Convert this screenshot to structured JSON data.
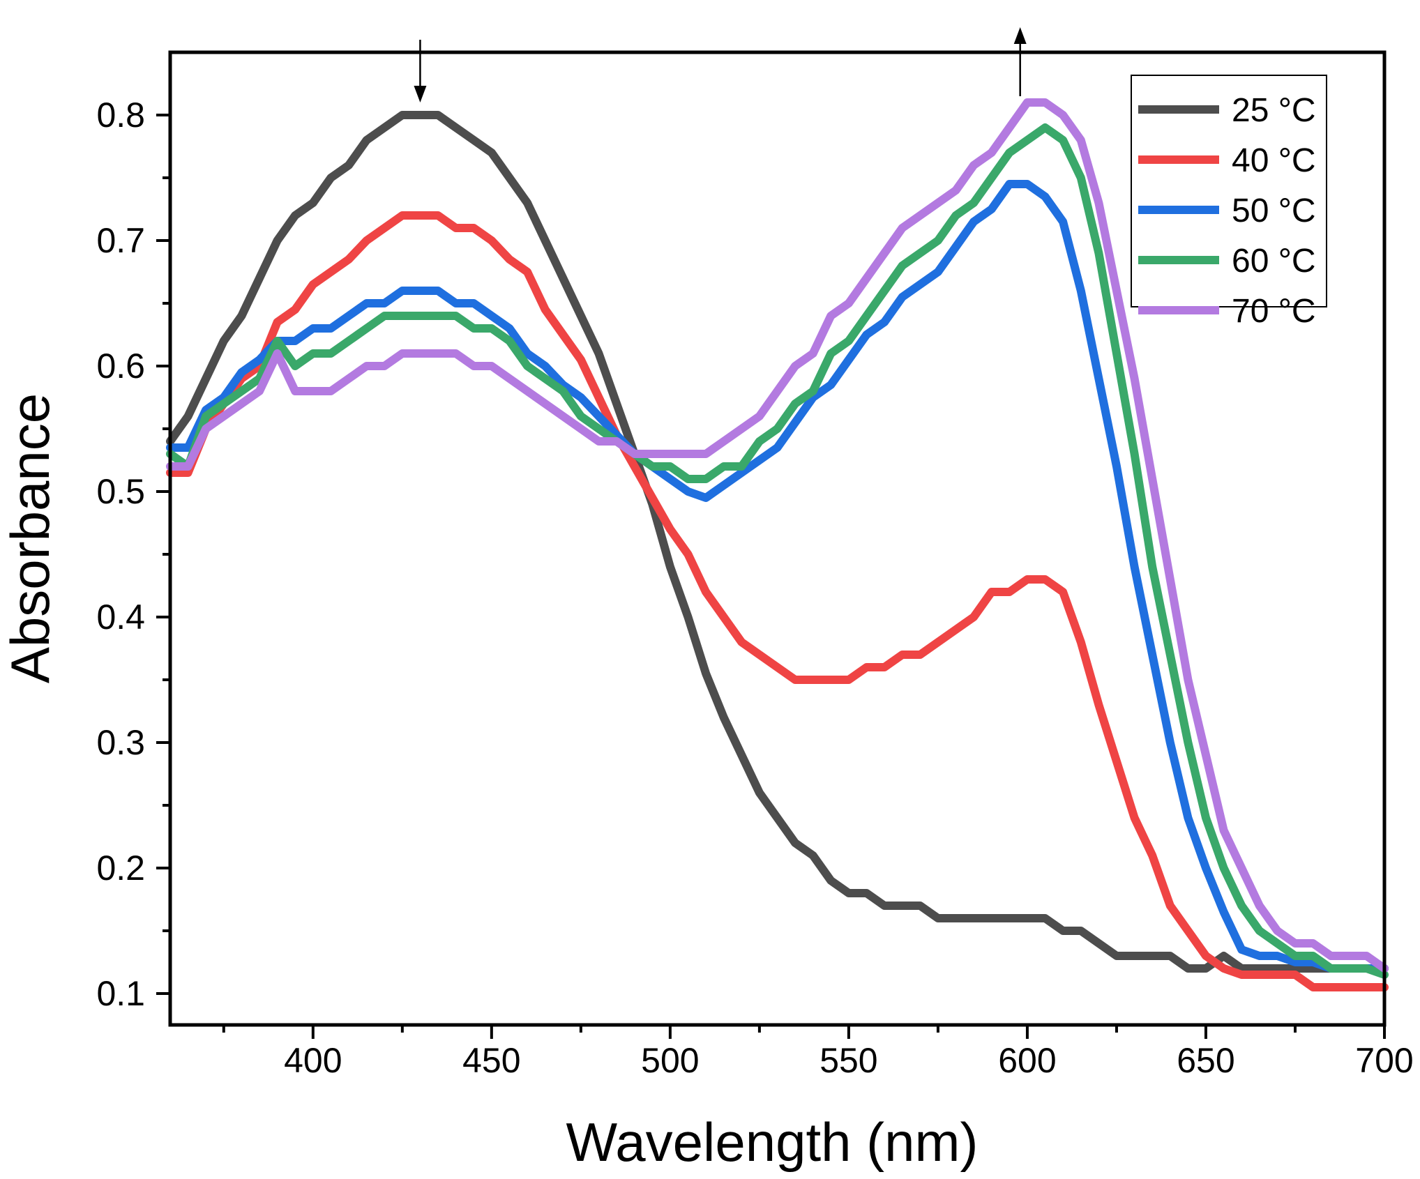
{
  "chart_data": {
    "type": "line",
    "xlabel": "Wavelength (nm)",
    "ylabel": "Absorbance",
    "xlim": [
      360,
      700
    ],
    "ylim": [
      0.075,
      0.85
    ],
    "x_ticks": [
      400,
      450,
      500,
      550,
      600,
      650,
      700
    ],
    "x_tick_labels": [
      "400",
      "450",
      "500",
      "550",
      "600",
      "650",
      "700"
    ],
    "y_ticks": [
      0.1,
      0.2,
      0.3,
      0.4,
      0.5,
      0.6,
      0.7,
      0.8
    ],
    "y_tick_labels": [
      "0.1",
      "0.2",
      "0.3",
      "0.4",
      "0.5",
      "0.6",
      "0.7",
      "0.8"
    ],
    "grid": false,
    "legend_position": "top-right",
    "annotations": [
      {
        "type": "arrow-down",
        "x": 430,
        "y_from": 0.86,
        "y_to": 0.81
      },
      {
        "type": "arrow-up",
        "x": 598,
        "y_from": 0.815,
        "y_to": 0.87
      }
    ],
    "x": [
      360,
      365,
      370,
      375,
      380,
      385,
      390,
      395,
      400,
      405,
      410,
      415,
      420,
      425,
      430,
      435,
      440,
      445,
      450,
      455,
      460,
      465,
      470,
      475,
      480,
      485,
      490,
      495,
      500,
      505,
      510,
      515,
      520,
      525,
      530,
      535,
      540,
      545,
      550,
      555,
      560,
      565,
      570,
      575,
      580,
      585,
      590,
      595,
      600,
      605,
      610,
      615,
      620,
      625,
      630,
      635,
      640,
      645,
      650,
      655,
      660,
      665,
      670,
      675,
      680,
      685,
      690,
      695,
      700
    ],
    "series": [
      {
        "name": "25 °C",
        "color": "#4d4d4d",
        "values": [
          0.54,
          0.56,
          0.59,
          0.62,
          0.64,
          0.67,
          0.7,
          0.72,
          0.73,
          0.75,
          0.76,
          0.78,
          0.79,
          0.8,
          0.8,
          0.8,
          0.79,
          0.78,
          0.77,
          0.75,
          0.73,
          0.7,
          0.67,
          0.64,
          0.61,
          0.57,
          0.53,
          0.49,
          0.44,
          0.4,
          0.355,
          0.32,
          0.29,
          0.26,
          0.24,
          0.22,
          0.21,
          0.19,
          0.18,
          0.18,
          0.17,
          0.17,
          0.17,
          0.16,
          0.16,
          0.16,
          0.16,
          0.16,
          0.16,
          0.16,
          0.15,
          0.15,
          0.14,
          0.13,
          0.13,
          0.13,
          0.13,
          0.12,
          0.12,
          0.13,
          0.12,
          0.12,
          0.12,
          0.12,
          0.12,
          0.12,
          0.12,
          0.12,
          0.12
        ]
      },
      {
        "name": "40 °C",
        "color": "#ef4444",
        "values": [
          0.515,
          0.515,
          0.55,
          0.57,
          0.59,
          0.6,
          0.635,
          0.645,
          0.665,
          0.675,
          0.685,
          0.7,
          0.71,
          0.72,
          0.72,
          0.72,
          0.71,
          0.71,
          0.7,
          0.685,
          0.675,
          0.645,
          0.625,
          0.605,
          0.575,
          0.545,
          0.52,
          0.495,
          0.47,
          0.45,
          0.42,
          0.4,
          0.38,
          0.37,
          0.36,
          0.35,
          0.35,
          0.35,
          0.35,
          0.36,
          0.36,
          0.37,
          0.37,
          0.38,
          0.39,
          0.4,
          0.42,
          0.42,
          0.43,
          0.43,
          0.42,
          0.38,
          0.33,
          0.285,
          0.24,
          0.21,
          0.17,
          0.15,
          0.13,
          0.12,
          0.115,
          0.115,
          0.115,
          0.115,
          0.105,
          0.105,
          0.105,
          0.105,
          0.105
        ]
      },
      {
        "name": "50 °C",
        "color": "#1f6fdf",
        "values": [
          0.535,
          0.535,
          0.565,
          0.575,
          0.595,
          0.605,
          0.62,
          0.62,
          0.63,
          0.63,
          0.64,
          0.65,
          0.65,
          0.66,
          0.66,
          0.66,
          0.65,
          0.65,
          0.64,
          0.63,
          0.61,
          0.6,
          0.585,
          0.575,
          0.56,
          0.545,
          0.53,
          0.52,
          0.51,
          0.5,
          0.495,
          0.505,
          0.515,
          0.525,
          0.535,
          0.555,
          0.575,
          0.585,
          0.605,
          0.625,
          0.635,
          0.655,
          0.665,
          0.675,
          0.695,
          0.715,
          0.725,
          0.745,
          0.745,
          0.735,
          0.715,
          0.66,
          0.59,
          0.52,
          0.44,
          0.37,
          0.3,
          0.24,
          0.2,
          0.165,
          0.135,
          0.13,
          0.13,
          0.125,
          0.125,
          0.12,
          0.12,
          0.12,
          0.12
        ]
      },
      {
        "name": "60 °C",
        "color": "#3aa86a",
        "values": [
          0.53,
          0.52,
          0.56,
          0.57,
          0.58,
          0.59,
          0.62,
          0.6,
          0.61,
          0.61,
          0.62,
          0.63,
          0.64,
          0.64,
          0.64,
          0.64,
          0.64,
          0.63,
          0.63,
          0.62,
          0.6,
          0.59,
          0.58,
          0.56,
          0.55,
          0.54,
          0.53,
          0.52,
          0.52,
          0.51,
          0.51,
          0.52,
          0.52,
          0.54,
          0.55,
          0.57,
          0.58,
          0.61,
          0.62,
          0.64,
          0.66,
          0.68,
          0.69,
          0.7,
          0.72,
          0.73,
          0.75,
          0.77,
          0.78,
          0.79,
          0.78,
          0.75,
          0.69,
          0.61,
          0.53,
          0.44,
          0.37,
          0.3,
          0.24,
          0.2,
          0.17,
          0.15,
          0.14,
          0.13,
          0.13,
          0.12,
          0.12,
          0.12,
          0.115
        ]
      },
      {
        "name": "70 °C",
        "color": "#b37ae0",
        "values": [
          0.52,
          0.52,
          0.55,
          0.56,
          0.57,
          0.58,
          0.61,
          0.58,
          0.58,
          0.58,
          0.59,
          0.6,
          0.6,
          0.61,
          0.61,
          0.61,
          0.61,
          0.6,
          0.6,
          0.59,
          0.58,
          0.57,
          0.56,
          0.55,
          0.54,
          0.54,
          0.53,
          0.53,
          0.53,
          0.53,
          0.53,
          0.54,
          0.55,
          0.56,
          0.58,
          0.6,
          0.61,
          0.64,
          0.65,
          0.67,
          0.69,
          0.71,
          0.72,
          0.73,
          0.74,
          0.76,
          0.77,
          0.79,
          0.81,
          0.81,
          0.8,
          0.78,
          0.73,
          0.66,
          0.59,
          0.51,
          0.43,
          0.35,
          0.29,
          0.23,
          0.2,
          0.17,
          0.15,
          0.14,
          0.14,
          0.13,
          0.13,
          0.13,
          0.12
        ]
      }
    ]
  }
}
